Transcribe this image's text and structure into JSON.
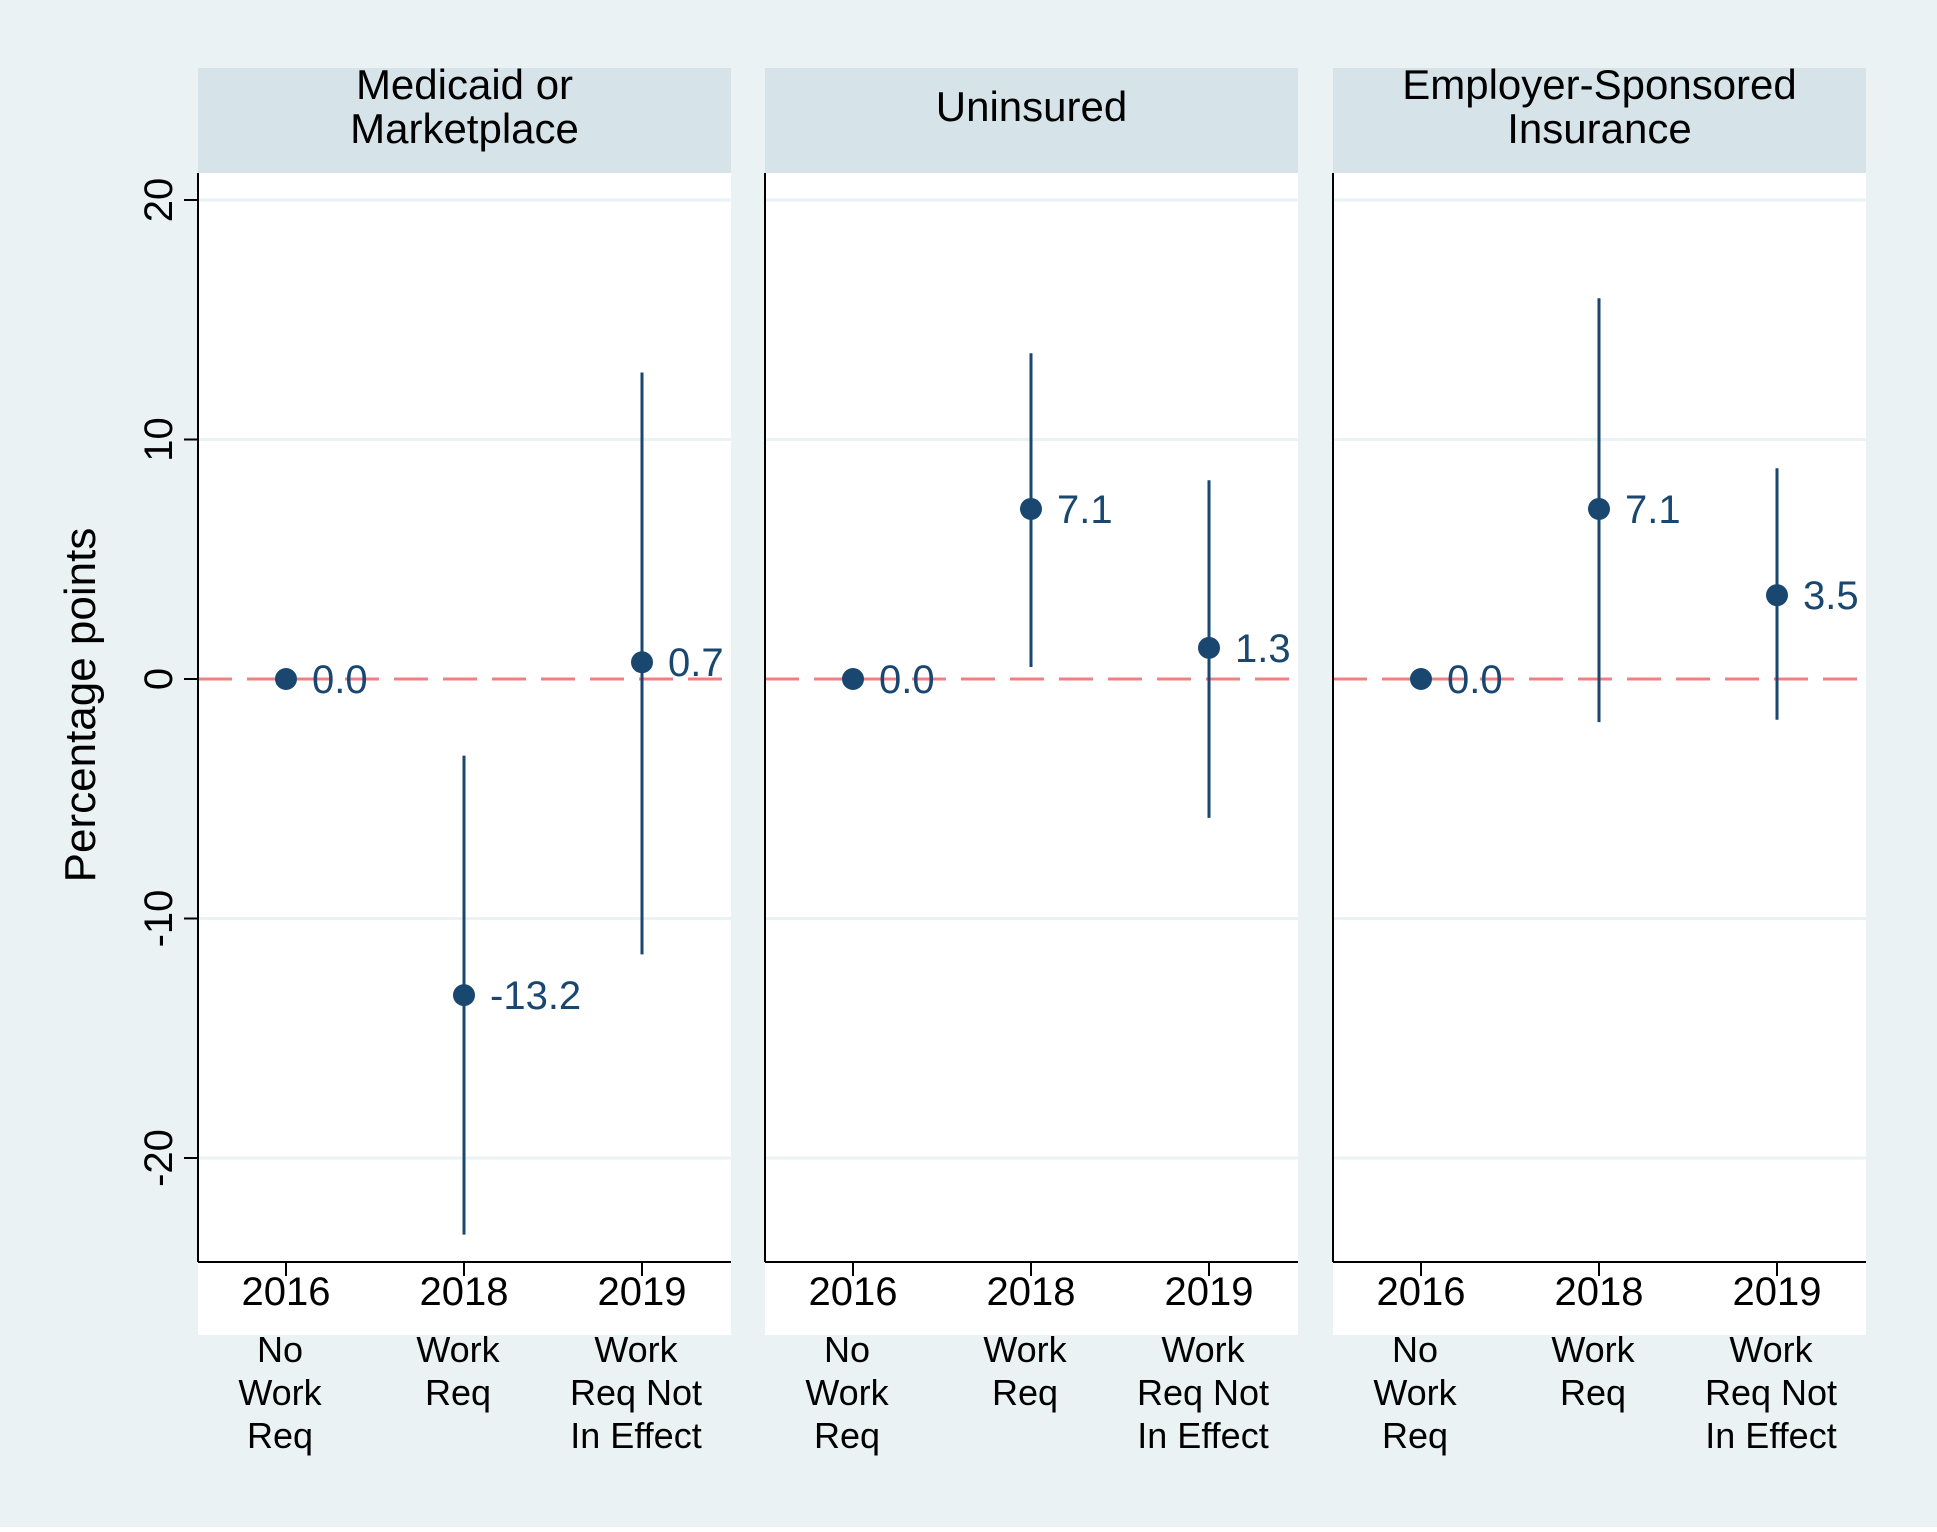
{
  "chart_data": {
    "type": "scatter",
    "subtype": "coefficient plot with confidence intervals, faceted",
    "ylabel": "Percentage points",
    "ylim": [
      -24.5,
      20
    ],
    "yticks": [
      -20,
      -10,
      0,
      10,
      20
    ],
    "ytick_labels": [
      "-20",
      "-10",
      "0",
      "10",
      "20"
    ],
    "reference_line": 0,
    "categories": [
      {
        "year": "2016",
        "sublabel": [
          "No",
          "Work",
          "Req"
        ]
      },
      {
        "year": "2018",
        "sublabel": [
          "Work",
          "Req"
        ]
      },
      {
        "year": "2019",
        "sublabel": [
          "Work",
          "Req Not",
          "In Effect"
        ]
      }
    ],
    "panels": [
      {
        "title": [
          "Medicaid or",
          "Marketplace"
        ],
        "points": [
          {
            "estimate": 0.0,
            "label": "0.0",
            "ci": null
          },
          {
            "estimate": -13.2,
            "label": "-13.2",
            "ci": [
              -23.2,
              -3.2
            ]
          },
          {
            "estimate": 0.7,
            "label": "0.7",
            "ci": [
              -11.5,
              12.8
            ]
          }
        ]
      },
      {
        "title": [
          "Uninsured"
        ],
        "points": [
          {
            "estimate": 0.0,
            "label": "0.0",
            "ci": null
          },
          {
            "estimate": 7.1,
            "label": "7.1",
            "ci": [
              0.5,
              13.6
            ]
          },
          {
            "estimate": 1.3,
            "label": "1.3",
            "ci": [
              -5.8,
              8.3
            ]
          }
        ]
      },
      {
        "title": [
          "Employer-Sponsored",
          "Insurance"
        ],
        "points": [
          {
            "estimate": 0.0,
            "label": "0.0",
            "ci": null
          },
          {
            "estimate": 7.1,
            "label": "7.1",
            "ci": [
              -1.8,
              15.9
            ]
          },
          {
            "estimate": 3.5,
            "label": "3.5",
            "ci": [
              -1.7,
              8.8
            ]
          }
        ]
      }
    ],
    "colors": {
      "background": "#eaf2f3",
      "panel_header": "#d6e3e8",
      "plot_area": "#ffffff",
      "marker": "#1a476f",
      "ref_line": "#f08080",
      "grid": "#eaf2f3",
      "text": "#000000"
    }
  }
}
